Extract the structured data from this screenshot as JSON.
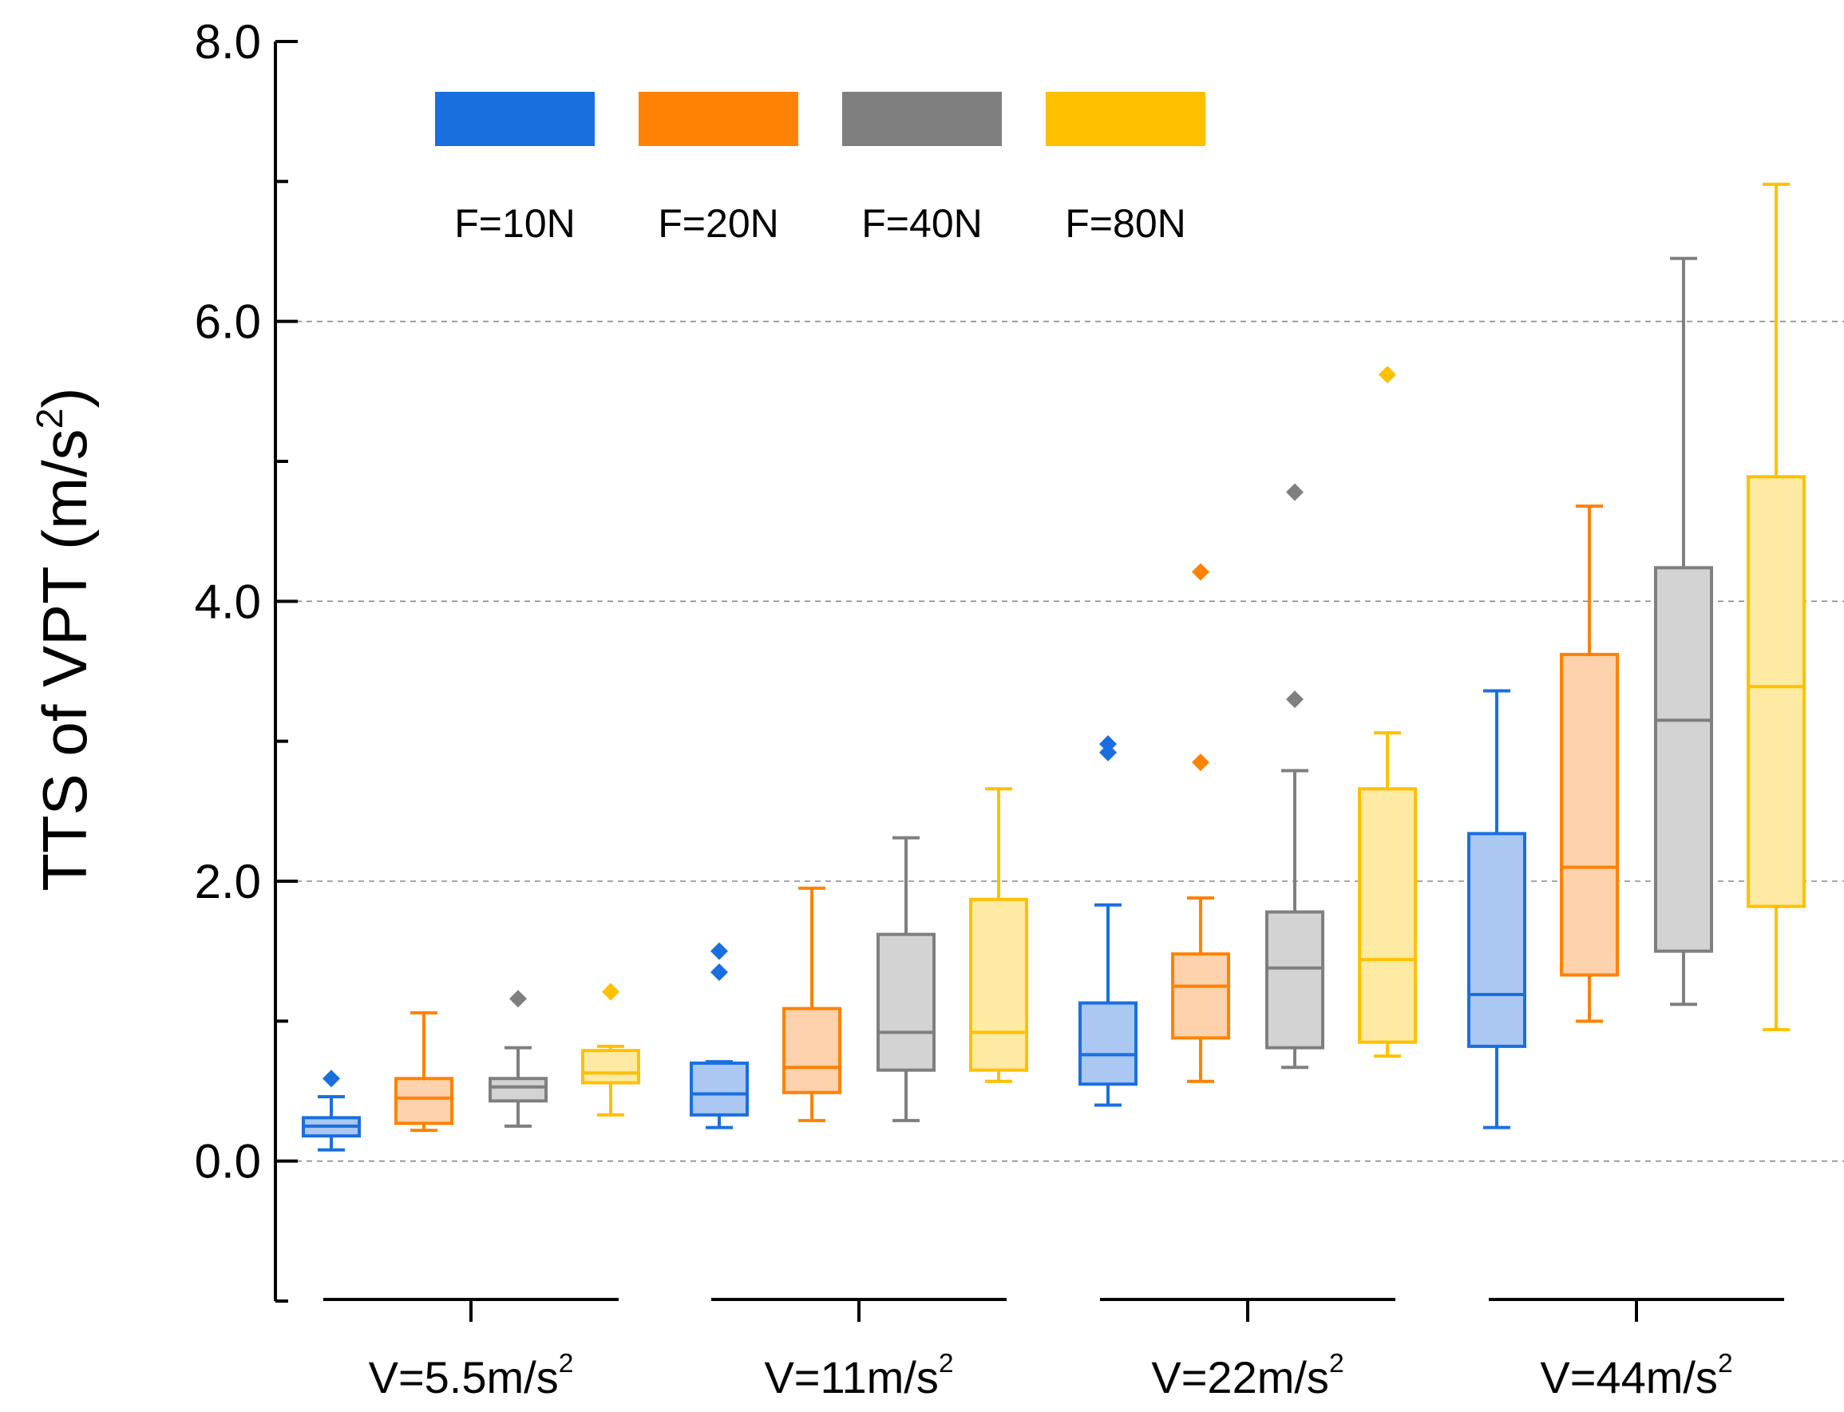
{
  "chart_data": {
    "type": "box",
    "title": "",
    "ylabel": "TTS of VPT (m/s",
    "ylabel_sup": "2",
    "ylabel_suffix": ")",
    "ylim": [
      -1.0,
      8.0
    ],
    "yticks_labeled": [
      0.0,
      2.0,
      4.0,
      6.0,
      8.0
    ],
    "ytick_labels": [
      "0.0",
      "2.0",
      "4.0",
      "6.0",
      "8.0"
    ],
    "yticks_minor": [
      -1.0,
      1.0,
      3.0,
      5.0,
      7.0
    ],
    "gridlines": [
      0.0,
      2.0,
      4.0,
      6.0
    ],
    "groups": [
      {
        "label": "V=5.5m/s",
        "sup": "2"
      },
      {
        "label": "V=11m/s",
        "sup": "2"
      },
      {
        "label": "V=22m/s",
        "sup": "2"
      },
      {
        "label": "V=44m/s",
        "sup": "2"
      }
    ],
    "series": [
      {
        "name": "F=10N",
        "color": "#1a6fdf",
        "fill": "#aac8f2",
        "boxes": [
          {
            "whisker_low": 0.08,
            "q1": 0.18,
            "median": 0.25,
            "q3": 0.31,
            "whisker_high": 0.46,
            "outliers": [
              0.59
            ]
          },
          {
            "whisker_low": 0.24,
            "q1": 0.33,
            "median": 0.48,
            "q3": 0.7,
            "whisker_high": 0.71,
            "outliers": [
              1.35,
              1.5
            ]
          },
          {
            "whisker_low": 0.4,
            "q1": 0.55,
            "median": 0.76,
            "q3": 1.13,
            "whisker_high": 1.83,
            "outliers": [
              2.92,
              2.98
            ]
          },
          {
            "whisker_low": 0.24,
            "q1": 0.82,
            "median": 1.19,
            "q3": 2.34,
            "whisker_high": 3.36,
            "outliers": []
          }
        ]
      },
      {
        "name": "F=20N",
        "color": "#ff8205",
        "fill": "#fdd2ac",
        "boxes": [
          {
            "whisker_low": 0.22,
            "q1": 0.27,
            "median": 0.45,
            "q3": 0.59,
            "whisker_high": 1.06,
            "outliers": []
          },
          {
            "whisker_low": 0.29,
            "q1": 0.49,
            "median": 0.67,
            "q3": 1.09,
            "whisker_high": 1.95,
            "outliers": []
          },
          {
            "whisker_low": 0.57,
            "q1": 0.88,
            "median": 1.25,
            "q3": 1.48,
            "whisker_high": 1.88,
            "outliers": [
              2.85,
              4.21
            ]
          },
          {
            "whisker_low": 1.0,
            "q1": 1.33,
            "median": 2.1,
            "q3": 3.62,
            "whisker_high": 4.68,
            "outliers": []
          }
        ]
      },
      {
        "name": "F=40N",
        "color": "#7f7f7f",
        "fill": "#d3d3d3",
        "boxes": [
          {
            "whisker_low": 0.25,
            "q1": 0.43,
            "median": 0.53,
            "q3": 0.59,
            "whisker_high": 0.81,
            "outliers": [
              1.16
            ]
          },
          {
            "whisker_low": 0.29,
            "q1": 0.65,
            "median": 0.92,
            "q3": 1.62,
            "whisker_high": 2.31,
            "outliers": []
          },
          {
            "whisker_low": 0.67,
            "q1": 0.81,
            "median": 1.38,
            "q3": 1.78,
            "whisker_high": 2.79,
            "outliers": [
              3.3,
              4.78
            ]
          },
          {
            "whisker_low": 1.12,
            "q1": 1.5,
            "median": 3.15,
            "q3": 4.24,
            "whisker_high": 6.45,
            "outliers": []
          }
        ]
      },
      {
        "name": "F=80N",
        "color": "#ffc000",
        "fill": "#ffeaa3",
        "boxes": [
          {
            "whisker_low": 0.33,
            "q1": 0.56,
            "median": 0.63,
            "q3": 0.79,
            "whisker_high": 0.82,
            "outliers": [
              1.21
            ]
          },
          {
            "whisker_low": 0.57,
            "q1": 0.65,
            "median": 0.92,
            "q3": 1.87,
            "whisker_high": 2.66,
            "outliers": []
          },
          {
            "whisker_low": 0.75,
            "q1": 0.85,
            "median": 1.44,
            "q3": 2.66,
            "whisker_high": 3.06,
            "outliers": [
              5.62
            ]
          },
          {
            "whisker_low": 0.94,
            "q1": 1.82,
            "median": 3.39,
            "q3": 4.89,
            "whisker_high": 6.98,
            "outliers": []
          }
        ]
      }
    ],
    "legend": {
      "placement": "top-left inside plot",
      "labels": [
        "F=10N",
        "F=20N",
        "F=40N",
        "F=80N"
      ]
    }
  }
}
